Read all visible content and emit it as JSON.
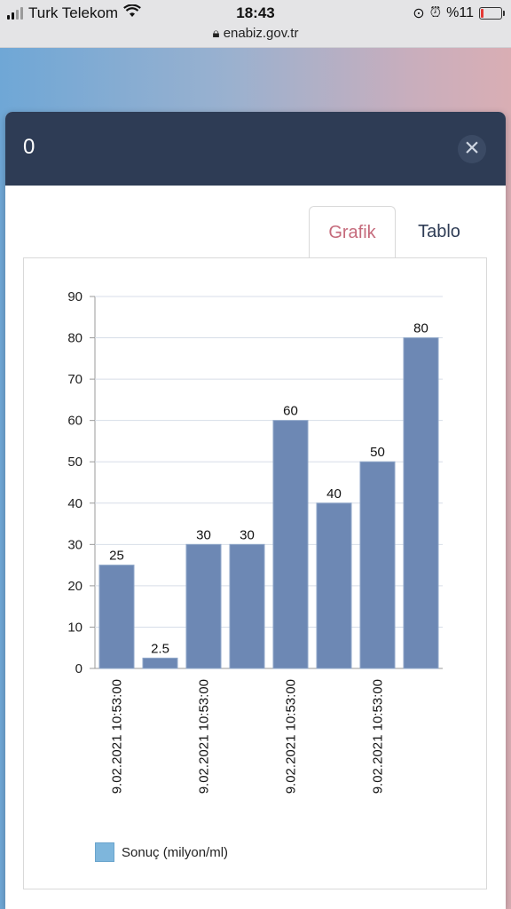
{
  "status_bar": {
    "carrier": "Turk Telekom",
    "time": "18:43",
    "url": "enabiz.gov.tr",
    "battery": "%11"
  },
  "modal": {
    "title": "0",
    "close_symbol": "×",
    "tabs": [
      {
        "label": "Grafik",
        "active": true
      },
      {
        "label": "Tablo",
        "active": false
      }
    ]
  },
  "chart_data": {
    "type": "bar",
    "categories": [
      "9.02.2021 10:53:00",
      "",
      "9.02.2021 10:53:00",
      "",
      "9.02.2021 10:53:00",
      "",
      "9.02.2021 10:53:00",
      ""
    ],
    "series": [
      {
        "name": "Sonuç (milyon/ml)",
        "values": [
          25,
          2.5,
          30,
          30,
          60,
          40,
          50,
          80
        ]
      }
    ],
    "value_labels": [
      "25",
      "2.5",
      "30",
      "30",
      "60",
      "40",
      "50",
      "80"
    ],
    "y_ticks": [
      "0",
      "10",
      "20",
      "30",
      "40",
      "50",
      "60",
      "70",
      "80",
      "90"
    ],
    "ylim": [
      0,
      90
    ],
    "grid": true,
    "legend_position": "bottom-left",
    "bar_color": "#6d88b4",
    "legend_color": "#7eb6dc"
  },
  "legend": {
    "label": "Sonuç (milyon/ml)"
  }
}
